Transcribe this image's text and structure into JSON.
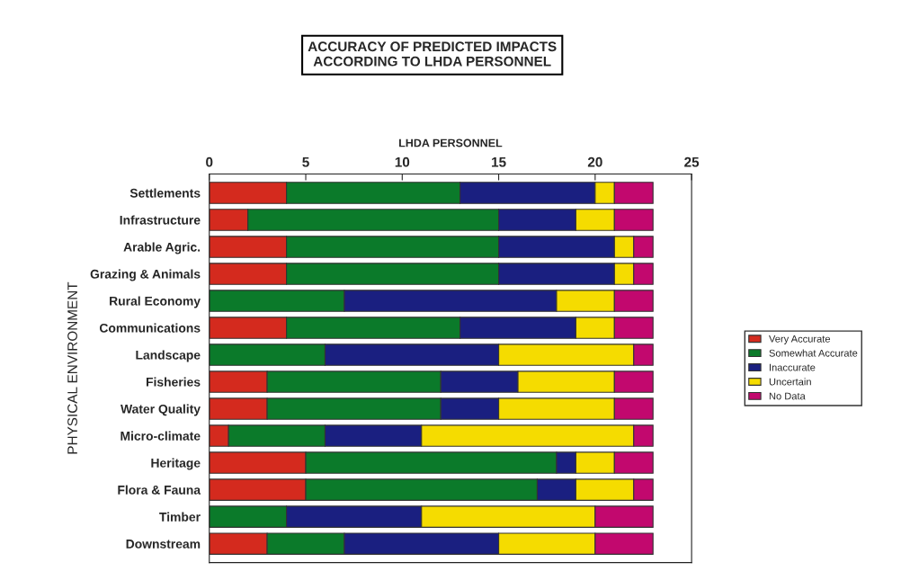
{
  "chart_data": {
    "type": "bar",
    "orientation": "horizontal",
    "stacked": true,
    "title": "ACCURACY OF PREDICTED IMPACTS\nACCORDING TO LHDA PERSONNEL",
    "xlabel": "LHDA PERSONNEL",
    "ylabel": "PHYSICAL ENVIRONMENT",
    "categories": [
      "Settlements",
      "Infrastructure",
      "Arable Agric.",
      "Grazing & Animals",
      "Rural Economy",
      "Communications",
      "Landscape",
      "Fisheries",
      "Water Quality",
      "Micro-climate",
      "Heritage",
      "Flora & Fauna",
      "Timber",
      "Downstream"
    ],
    "series": [
      {
        "name": "Very Accurate",
        "color": "#d42a1e",
        "values": [
          4,
          2,
          4,
          4,
          0,
          4,
          0,
          3,
          3,
          1,
          5,
          5,
          0,
          3
        ]
      },
      {
        "name": "Somewhat Accurate",
        "color": "#0b7a2a",
        "values": [
          9,
          13,
          11,
          11,
          7,
          9,
          6,
          9,
          9,
          5,
          13,
          12,
          4,
          4
        ]
      },
      {
        "name": "Inaccurate",
        "color": "#1a1f80",
        "values": [
          7,
          4,
          6,
          6,
          11,
          6,
          9,
          4,
          3,
          5,
          1,
          2,
          7,
          8
        ]
      },
      {
        "name": "Uncertain",
        "color": "#f5dc00",
        "values": [
          1,
          2,
          1,
          1,
          3,
          2,
          7,
          5,
          6,
          11,
          2,
          3,
          9,
          5
        ]
      },
      {
        "name": "No Data",
        "color": "#c2086e",
        "values": [
          2,
          2,
          1,
          1,
          2,
          2,
          1,
          2,
          2,
          1,
          2,
          1,
          3,
          3
        ]
      }
    ],
    "xlim": [
      0,
      25
    ],
    "xticks": [
      0,
      5,
      10,
      15,
      20,
      25
    ],
    "grid": false,
    "legend": "right"
  }
}
